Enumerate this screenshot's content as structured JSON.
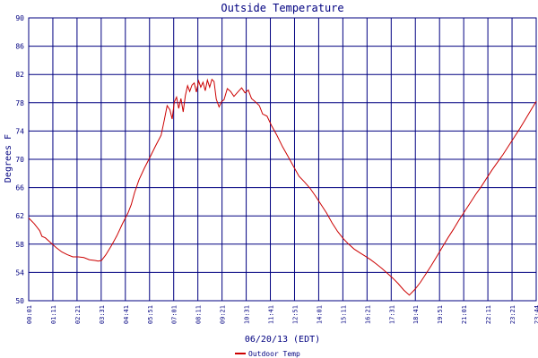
{
  "chart_data": {
    "type": "line",
    "title": "Outside Temperature",
    "xlabel": "06/20/13 (EDT)",
    "ylabel": "Degrees F",
    "ylim": [
      50,
      90
    ],
    "y_ticks": [
      50,
      54,
      58,
      62,
      66,
      70,
      74,
      78,
      82,
      86,
      90
    ],
    "x_ticks": [
      "00:01",
      "01:11",
      "02:21",
      "03:31",
      "04:41",
      "05:51",
      "07:01",
      "08:11",
      "09:21",
      "10:31",
      "11:41",
      "12:51",
      "14:01",
      "15:11",
      "16:21",
      "17:31",
      "18:41",
      "19:51",
      "21:01",
      "22:11",
      "23:21",
      "23:44"
    ],
    "grid": true,
    "legend_position": "bottom-left",
    "colors": {
      "series": "#cc0000",
      "grid": "#000080",
      "text": "#000080"
    },
    "series": [
      {
        "name": "Outdoor Temp",
        "values": [
          [
            0,
            61.7
          ],
          [
            0.5,
            60.9
          ],
          [
            1.0,
            59.9
          ],
          [
            1.2,
            59.1
          ],
          [
            1.5,
            58.9
          ],
          [
            2.0,
            58.2
          ],
          [
            2.5,
            57.5
          ],
          [
            3.0,
            56.9
          ],
          [
            3.5,
            56.5
          ],
          [
            4.0,
            56.2
          ],
          [
            4.5,
            56.2
          ],
          [
            5.0,
            56.1
          ],
          [
            5.5,
            55.8
          ],
          [
            6.0,
            55.7
          ],
          [
            6.3,
            55.6
          ],
          [
            6.6,
            55.7
          ],
          [
            7.0,
            56.5
          ],
          [
            7.5,
            57.8
          ],
          [
            8.0,
            59.2
          ],
          [
            8.5,
            60.9
          ],
          [
            9.0,
            62.4
          ],
          [
            9.3,
            63.6
          ],
          [
            9.6,
            65.3
          ],
          [
            10.0,
            67.1
          ],
          [
            10.5,
            68.8
          ],
          [
            11.0,
            70.3
          ],
          [
            11.5,
            71.9
          ],
          [
            12.0,
            73.4
          ],
          [
            12.3,
            75.6
          ],
          [
            12.55,
            77.6
          ],
          [
            12.8,
            77.0
          ],
          [
            13.0,
            75.7
          ],
          [
            13.2,
            78.1
          ],
          [
            13.4,
            78.8
          ],
          [
            13.6,
            77.2
          ],
          [
            13.8,
            78.6
          ],
          [
            14.0,
            76.7
          ],
          [
            14.2,
            79.0
          ],
          [
            14.4,
            80.4
          ],
          [
            14.6,
            79.6
          ],
          [
            14.8,
            80.5
          ],
          [
            15.0,
            80.8
          ],
          [
            15.2,
            79.5
          ],
          [
            15.4,
            81.1
          ],
          [
            15.6,
            80.2
          ],
          [
            15.8,
            80.9
          ],
          [
            16.0,
            79.7
          ],
          [
            16.2,
            81.2
          ],
          [
            16.4,
            80.2
          ],
          [
            16.6,
            81.3
          ],
          [
            16.8,
            81.0
          ],
          [
            17.0,
            78.5
          ],
          [
            17.25,
            77.4
          ],
          [
            17.5,
            78.2
          ],
          [
            17.7,
            78.4
          ],
          [
            18.0,
            80.0
          ],
          [
            18.3,
            79.6
          ],
          [
            18.6,
            78.9
          ],
          [
            19.0,
            79.6
          ],
          [
            19.3,
            80.1
          ],
          [
            19.6,
            79.4
          ],
          [
            19.9,
            79.8
          ],
          [
            20.2,
            78.6
          ],
          [
            20.5,
            78.2
          ],
          [
            20.9,
            77.6
          ],
          [
            21.2,
            76.4
          ],
          [
            21.6,
            76.1
          ],
          [
            22.0,
            74.8
          ],
          [
            22.5,
            73.4
          ],
          [
            23.0,
            71.8
          ],
          [
            23.5,
            70.4
          ],
          [
            24.0,
            69.0
          ],
          [
            24.5,
            67.6
          ],
          [
            25.0,
            66.8
          ],
          [
            25.5,
            65.9
          ],
          [
            26.0,
            64.8
          ],
          [
            26.5,
            63.6
          ],
          [
            27.0,
            62.4
          ],
          [
            27.5,
            61.0
          ],
          [
            28.0,
            59.8
          ],
          [
            28.5,
            58.8
          ],
          [
            29.0,
            58.0
          ],
          [
            29.5,
            57.3
          ],
          [
            30.0,
            56.8
          ],
          [
            30.5,
            56.3
          ],
          [
            31.0,
            55.8
          ],
          [
            31.5,
            55.2
          ],
          [
            32.0,
            54.6
          ],
          [
            32.5,
            53.9
          ],
          [
            33.0,
            53.2
          ],
          [
            33.5,
            52.4
          ],
          [
            34.0,
            51.5
          ],
          [
            34.5,
            50.8
          ],
          [
            35.0,
            51.6
          ],
          [
            35.5,
            52.6
          ],
          [
            36.0,
            53.8
          ],
          [
            36.5,
            55.0
          ],
          [
            37.0,
            56.3
          ],
          [
            37.5,
            57.6
          ],
          [
            38.0,
            58.9
          ],
          [
            38.5,
            60.1
          ],
          [
            39.0,
            61.4
          ],
          [
            39.5,
            62.6
          ],
          [
            40.0,
            63.8
          ],
          [
            40.5,
            65.0
          ],
          [
            41.0,
            66.1
          ],
          [
            41.5,
            67.3
          ],
          [
            42.0,
            68.5
          ],
          [
            42.5,
            69.6
          ],
          [
            43.0,
            70.7
          ],
          [
            43.5,
            71.9
          ],
          [
            44.0,
            73.1
          ],
          [
            44.5,
            74.3
          ],
          [
            45.0,
            75.6
          ],
          [
            45.5,
            76.9
          ],
          [
            46.0,
            78.2
          ]
        ]
      }
    ]
  }
}
